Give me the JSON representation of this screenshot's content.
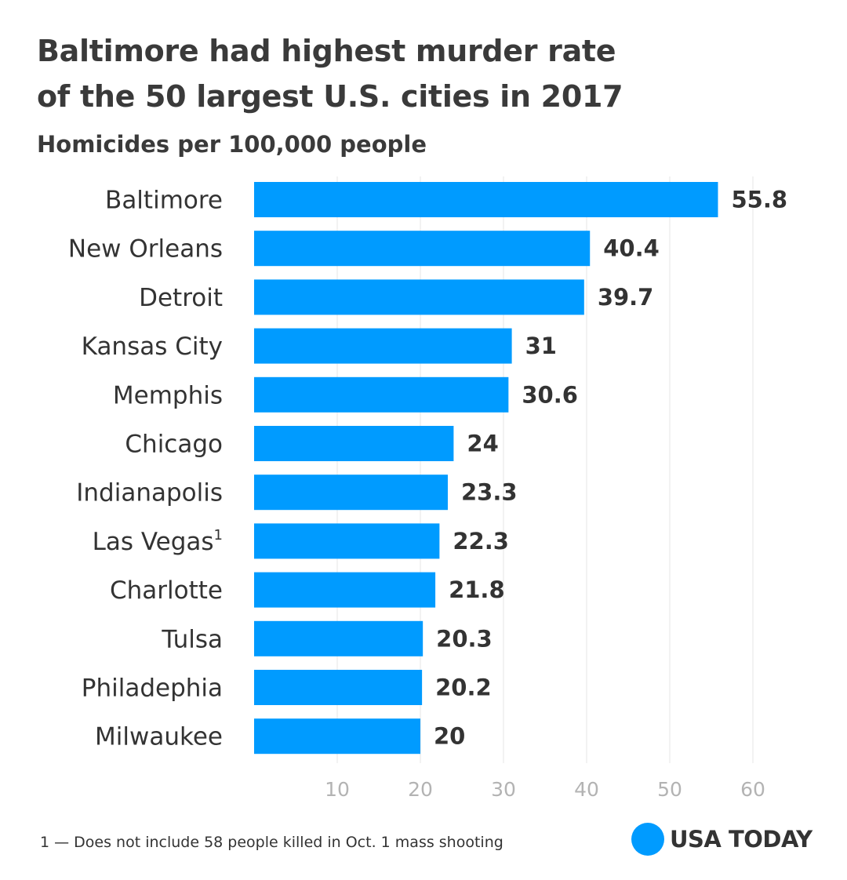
{
  "chart_data": {
    "type": "bar",
    "orientation": "horizontal",
    "title": "Baltimore had highest murder rate of the 50 largest U.S. cities in 2017",
    "title_lines": [
      "Baltimore had highest murder rate",
      "of the 50 largest U.S. cities in 2017"
    ],
    "subtitle": "Homicides per 100,000 people",
    "categories": [
      {
        "name": "Baltimore",
        "note": ""
      },
      {
        "name": "New Orleans",
        "note": ""
      },
      {
        "name": "Detroit",
        "note": ""
      },
      {
        "name": "Kansas City",
        "note": ""
      },
      {
        "name": "Memphis",
        "note": ""
      },
      {
        "name": "Chicago",
        "note": ""
      },
      {
        "name": "Indianapolis",
        "note": ""
      },
      {
        "name": "Las Vegas",
        "note": "1"
      },
      {
        "name": "Charlotte",
        "note": ""
      },
      {
        "name": "Tulsa",
        "note": ""
      },
      {
        "name": "Philadephia",
        "note": ""
      },
      {
        "name": "Milwaukee",
        "note": ""
      }
    ],
    "values": [
      55.8,
      40.4,
      39.7,
      31,
      30.6,
      24,
      23.3,
      22.3,
      21.8,
      20.3,
      20.2,
      20
    ],
    "data_labels": [
      "55.8",
      "40.4",
      "39.7",
      "31",
      "30.6",
      "24",
      "23.3",
      "22.3",
      "21.8",
      "20.3",
      "20.2",
      "20"
    ],
    "xlim": [
      0,
      60
    ],
    "xticks": [
      10,
      20,
      30,
      40,
      50,
      60
    ],
    "grid": true,
    "xlabel": "",
    "ylabel": ""
  },
  "footnote": "1 — Does not include 58 people killed in Oct. 1 mass shooting",
  "logo": {
    "text": "USA TODAY"
  },
  "colors": {
    "bar": "#009bff",
    "logo_dot": "#009bff",
    "text": "#333333",
    "grid": "#e4e4e4",
    "tick": "#b3b3b3"
  }
}
